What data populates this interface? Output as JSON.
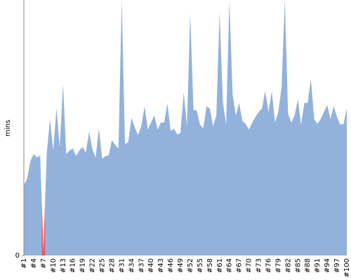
{
  "chart_data": {
    "type": "area",
    "ylabel": "mins",
    "color": "#92b2dc",
    "highlight_color": "#e8575c",
    "highlight_index": 6,
    "categories": [
      "#1",
      null,
      null,
      "#4",
      null,
      null,
      "#7",
      null,
      null,
      "#10",
      null,
      null,
      "#13",
      null,
      null,
      "#16",
      null,
      null,
      "#19",
      null,
      null,
      "#22",
      null,
      null,
      "#25",
      null,
      null,
      "#28",
      null,
      null,
      "#31",
      null,
      null,
      "#34",
      null,
      null,
      "#37",
      null,
      null,
      "#40",
      null,
      null,
      "#43",
      null,
      null,
      "#46",
      null,
      null,
      "#49",
      null,
      null,
      "#52",
      null,
      null,
      "#55",
      null,
      null,
      "#58",
      null,
      null,
      "#61",
      null,
      null,
      "#64",
      null,
      null,
      "#67",
      null,
      null,
      "#70",
      null,
      null,
      "#73",
      null,
      null,
      "#76",
      null,
      null,
      "#79",
      null,
      null,
      "#82",
      null,
      null,
      "#85",
      null,
      null,
      "#88",
      null,
      null,
      "#91",
      null,
      null,
      "#94",
      null,
      null,
      "#97",
      null,
      null,
      "#100"
    ],
    "values": [
      100,
      110,
      135,
      145,
      140,
      143,
      5,
      145,
      195,
      150,
      210,
      155,
      245,
      145,
      150,
      153,
      142,
      150,
      155,
      147,
      177,
      152,
      140,
      182,
      138,
      142,
      143,
      165,
      158,
      153,
      365,
      159,
      162,
      197,
      183,
      172,
      185,
      213,
      180,
      190,
      200,
      180,
      190,
      190,
      217,
      178,
      181,
      173,
      175,
      233,
      185,
      345,
      208,
      207,
      187,
      182,
      213,
      210,
      185,
      200,
      347,
      220,
      187,
      365,
      230,
      200,
      218,
      192,
      188,
      180,
      190,
      198,
      205,
      210,
      235,
      205,
      235,
      190,
      205,
      240,
      365,
      202,
      190,
      200,
      223,
      187,
      218,
      218,
      252,
      195,
      188,
      195,
      205,
      215,
      195,
      213,
      198,
      187,
      188,
      210
    ],
    "ylim": [
      0,
      365
    ],
    "yticks": [
      0
    ]
  }
}
